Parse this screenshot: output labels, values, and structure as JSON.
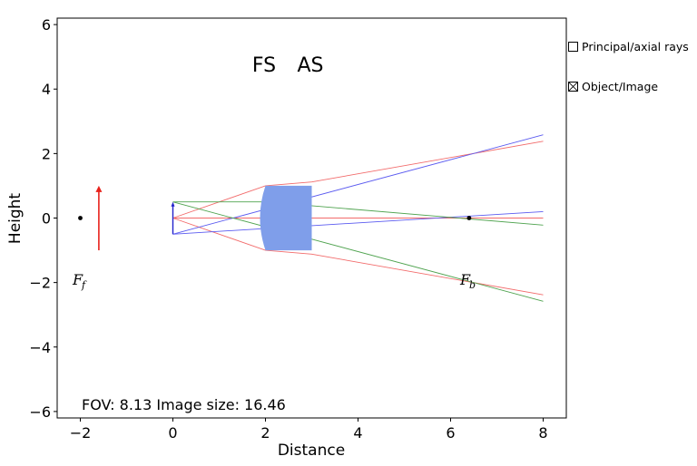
{
  "chart_data": {
    "type": "line",
    "title": "",
    "xlabel": "Distance",
    "ylabel": "Height",
    "xlim": [
      -2.5,
      8.5
    ],
    "ylim": [
      -6.2,
      6.2
    ],
    "xticks": [
      -2,
      0,
      2,
      4,
      6,
      8
    ],
    "yticks": [
      -6,
      -4,
      -2,
      0,
      2,
      4,
      6
    ],
    "xtick_labels": [
      "−2",
      "0",
      "2",
      "4",
      "6",
      "8"
    ],
    "ytick_labels": [
      "−6",
      "−4",
      "−2",
      "0",
      "2",
      "4",
      "6"
    ],
    "annotations": {
      "fs_label": "FS",
      "as_label": "AS",
      "footer": "FOV: 8.13 Image size: 16.46",
      "front_focal": "F",
      "front_focal_sub": "f",
      "back_focal": "F",
      "back_focal_sub": "b"
    },
    "lens": {
      "front_x": 2.0,
      "back_x": 3.0,
      "half_height": 1.0,
      "color": "#7f9eea"
    },
    "focal_points": {
      "front": [
        -2.0,
        0.0
      ],
      "back": [
        6.4,
        0.0
      ]
    },
    "object_arrow": {
      "x": -1.6,
      "y_from": -1.0,
      "y_to": 1.0,
      "color": "#e8221b"
    },
    "image_arrow": {
      "x": 0.0,
      "y_from": -0.5,
      "y_to": 0.5,
      "color": "#2222cc"
    },
    "series": [
      {
        "name": "marginal-ray-upper",
        "color": "#f26b6b",
        "x": [
          0,
          2.0,
          3.0,
          8.0
        ],
        "y": [
          0,
          1.0,
          1.12,
          2.38
        ]
      },
      {
        "name": "marginal-ray-lower",
        "color": "#f26b6b",
        "x": [
          0,
          2.0,
          3.0,
          8.0
        ],
        "y": [
          0,
          -1.0,
          -1.12,
          -2.38
        ]
      },
      {
        "name": "axis-ray",
        "color": "#f26b6b",
        "x": [
          0,
          8.0
        ],
        "y": [
          0,
          0
        ]
      },
      {
        "name": "chief-ray-upper",
        "color": "#5b5bf0",
        "x": [
          0,
          8.0
        ],
        "y": [
          -0.5,
          2.58
        ]
      },
      {
        "name": "chief-ray-lower",
        "color": "#5b5bf0",
        "x": [
          0,
          8.0
        ],
        "y": [
          -0.5,
          0.2
        ]
      },
      {
        "name": "parallel-ray-upper",
        "color": "#4fa34f",
        "x": [
          0,
          2.0,
          8.0
        ],
        "y": [
          0.5,
          0.5,
          -0.22
        ]
      },
      {
        "name": "parallel-ray-lower",
        "color": "#4fa34f",
        "x": [
          0,
          8.0
        ],
        "y": [
          0.5,
          -2.58
        ]
      }
    ]
  },
  "controls": {
    "principal_label": "Principal/axial rays",
    "principal_checked": false,
    "object_label": "Object/Image",
    "object_checked": true
  }
}
